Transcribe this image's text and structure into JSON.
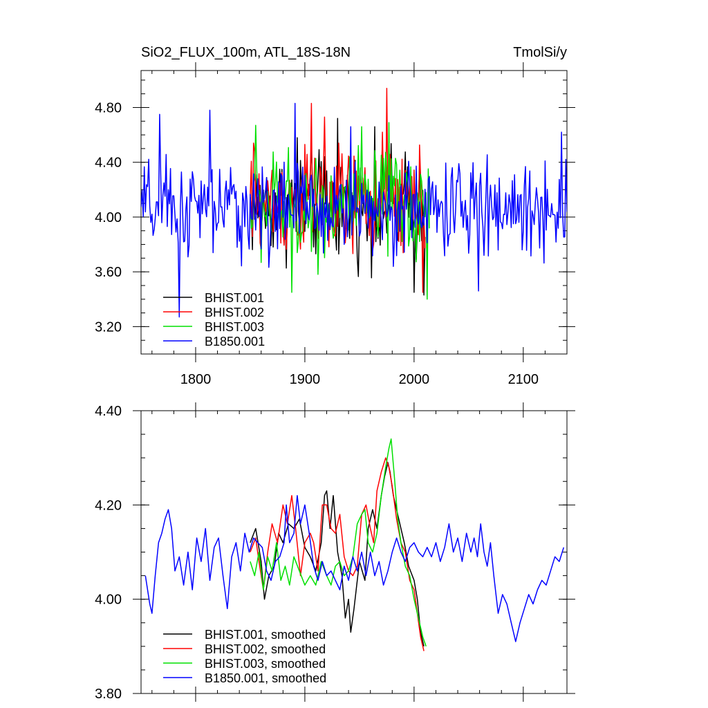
{
  "chart_data": [
    {
      "type": "line",
      "title_left": "SiO2_FLUX_100m, ATL_18S-18N",
      "title_right": "TmolSi/y",
      "xlim": [
        1750,
        2140
      ],
      "ylim": [
        3.0,
        5.07
      ],
      "xticks": [
        1800,
        1900,
        2000,
        2100
      ],
      "yticks": [
        3.2,
        3.6,
        4.0,
        4.4,
        4.8
      ],
      "ytick_labels": [
        "3.20",
        "3.60",
        "4.00",
        "4.40",
        "4.80"
      ],
      "legend_position": "bottom-left",
      "series": [
        {
          "name": "BHIST.001",
          "color": "#000000",
          "x_start": 1850,
          "x_end": 2010,
          "mean": 4.08,
          "sd": 0.25,
          "peaks": [
            [
              1893,
              4.58
            ],
            [
              1918,
              4.44
            ],
            [
              1930,
              4.72
            ],
            [
              1964,
              4.66
            ],
            [
              2000,
              3.45
            ],
            [
              2009,
              3.43
            ]
          ]
        },
        {
          "name": "BHIST.002",
          "color": "#ff0000",
          "x_start": 1850,
          "x_end": 2010,
          "mean": 4.1,
          "sd": 0.26,
          "peaks": [
            [
              1853,
              4.54
            ],
            [
              1906,
              4.83
            ],
            [
              1918,
              4.73
            ],
            [
              1975,
              4.94
            ],
            [
              2008,
              3.45
            ]
          ]
        },
        {
          "name": "BHIST.003",
          "color": "#00e000",
          "x_start": 1850,
          "x_end": 2014,
          "mean": 4.08,
          "sd": 0.25,
          "peaks": [
            [
              1855,
              4.67
            ],
            [
              1888,
              3.45
            ],
            [
              1952,
              4.66
            ],
            [
              1977,
              4.69
            ],
            [
              2012,
              3.4
            ]
          ]
        },
        {
          "name": "B1850.001",
          "color": "#0000ff",
          "x_start": 1750,
          "x_end": 2140,
          "mean": 4.06,
          "sd": 0.22,
          "peaks": [
            [
              1767,
              4.75
            ],
            [
              1785,
              3.27
            ],
            [
              1813,
              4.78
            ],
            [
              1891,
              4.83
            ],
            [
              1942,
              4.66
            ],
            [
              2059,
              3.46
            ],
            [
              2135,
              4.62
            ]
          ]
        }
      ]
    },
    {
      "type": "line",
      "xlim": [
        1750,
        2140
      ],
      "ylim": [
        3.8,
        4.4
      ],
      "yticks": [
        3.8,
        4.0,
        4.2,
        4.4
      ],
      "ytick_labels": [
        "3.80",
        "4.00",
        "4.20",
        "4.40"
      ],
      "legend_position": "bottom-left",
      "series": [
        {
          "name": "BHIST.001, smoothed",
          "color": "#000000",
          "points": [
            [
              1850,
              4.12
            ],
            [
              1855,
              4.15
            ],
            [
              1860,
              4.08
            ],
            [
              1863,
              4.0
            ],
            [
              1867,
              4.05
            ],
            [
              1872,
              4.07
            ],
            [
              1876,
              4.14
            ],
            [
              1880,
              4.12
            ],
            [
              1885,
              4.16
            ],
            [
              1890,
              4.15
            ],
            [
              1895,
              4.17
            ],
            [
              1900,
              4.11
            ],
            [
              1905,
              4.09
            ],
            [
              1910,
              4.06
            ],
            [
              1915,
              4.12
            ],
            [
              1918,
              4.22
            ],
            [
              1920,
              4.23
            ],
            [
              1923,
              4.15
            ],
            [
              1926,
              4.22
            ],
            [
              1930,
              4.1
            ],
            [
              1934,
              4.05
            ],
            [
              1937,
              3.96
            ],
            [
              1940,
              4.0
            ],
            [
              1942,
              3.93
            ],
            [
              1945,
              3.98
            ],
            [
              1950,
              4.08
            ],
            [
              1955,
              4.04
            ],
            [
              1958,
              4.15
            ],
            [
              1962,
              4.19
            ],
            [
              1966,
              4.15
            ],
            [
              1970,
              4.22
            ],
            [
              1973,
              4.26
            ],
            [
              1976,
              4.29
            ],
            [
              1978,
              4.27
            ],
            [
              1981,
              4.22
            ],
            [
              1984,
              4.19
            ],
            [
              1988,
              4.15
            ],
            [
              1991,
              4.12
            ],
            [
              1995,
              4.07
            ],
            [
              2000,
              4.04
            ],
            [
              2003,
              4.0
            ],
            [
              2006,
              3.93
            ],
            [
              2009,
              3.9
            ]
          ]
        },
        {
          "name": "BHIST.002, smoothed",
          "color": "#ff0000",
          "points": [
            [
              1850,
              4.1
            ],
            [
              1855,
              4.13
            ],
            [
              1858,
              4.08
            ],
            [
              1862,
              4.02
            ],
            [
              1866,
              4.1
            ],
            [
              1870,
              4.16
            ],
            [
              1875,
              4.12
            ],
            [
              1880,
              4.2
            ],
            [
              1884,
              4.16
            ],
            [
              1888,
              4.22
            ],
            [
              1892,
              4.14
            ],
            [
              1896,
              4.05
            ],
            [
              1900,
              4.12
            ],
            [
              1905,
              4.14
            ],
            [
              1908,
              4.12
            ],
            [
              1912,
              4.06
            ],
            [
              1916,
              4.2
            ],
            [
              1920,
              4.2
            ],
            [
              1924,
              4.15
            ],
            [
              1928,
              4.14
            ],
            [
              1932,
              4.18
            ],
            [
              1936,
              4.09
            ],
            [
              1940,
              4.06
            ],
            [
              1944,
              4.05
            ],
            [
              1948,
              4.07
            ],
            [
              1952,
              4.18
            ],
            [
              1956,
              4.2
            ],
            [
              1960,
              4.15
            ],
            [
              1963,
              4.12
            ],
            [
              1966,
              4.23
            ],
            [
              1970,
              4.27
            ],
            [
              1974,
              4.3
            ],
            [
              1977,
              4.28
            ],
            [
              1980,
              4.24
            ],
            [
              1984,
              4.17
            ],
            [
              1988,
              4.12
            ],
            [
              1992,
              4.1
            ],
            [
              1996,
              4.04
            ],
            [
              2000,
              4.02
            ],
            [
              2003,
              3.97
            ],
            [
              2006,
              3.92
            ],
            [
              2009,
              3.89
            ]
          ]
        },
        {
          "name": "BHIST.003, smoothed",
          "color": "#00e000",
          "points": [
            [
              1850,
              4.08
            ],
            [
              1854,
              4.05
            ],
            [
              1858,
              4.1
            ],
            [
              1862,
              4.02
            ],
            [
              1866,
              4.09
            ],
            [
              1870,
              4.06
            ],
            [
              1874,
              4.12
            ],
            [
              1878,
              4.04
            ],
            [
              1882,
              4.07
            ],
            [
              1886,
              4.03
            ],
            [
              1890,
              4.09
            ],
            [
              1895,
              4.06
            ],
            [
              1900,
              4.03
            ],
            [
              1905,
              4.05
            ],
            [
              1910,
              4.03
            ],
            [
              1915,
              4.08
            ],
            [
              1920,
              4.05
            ],
            [
              1924,
              4.03
            ],
            [
              1928,
              4.07
            ],
            [
              1932,
              4.08
            ],
            [
              1936,
              4.05
            ],
            [
              1940,
              4.06
            ],
            [
              1944,
              4.09
            ],
            [
              1948,
              4.16
            ],
            [
              1952,
              4.18
            ],
            [
              1955,
              4.19
            ],
            [
              1958,
              4.12
            ],
            [
              1962,
              4.1
            ],
            [
              1966,
              4.14
            ],
            [
              1970,
              4.22
            ],
            [
              1974,
              4.28
            ],
            [
              1977,
              4.32
            ],
            [
              1979,
              4.34
            ],
            [
              1982,
              4.26
            ],
            [
              1985,
              4.17
            ],
            [
              1988,
              4.12
            ],
            [
              1992,
              4.07
            ],
            [
              1996,
              4.05
            ],
            [
              2000,
              4.0
            ],
            [
              2004,
              3.96
            ],
            [
              2008,
              3.92
            ],
            [
              2011,
              3.9
            ]
          ]
        },
        {
          "name": "B1850.001, smoothed",
          "color": "#0000ff",
          "points": [
            [
              1754,
              4.05
            ],
            [
              1758,
              3.99
            ],
            [
              1760,
              3.97
            ],
            [
              1763,
              4.05
            ],
            [
              1766,
              4.12
            ],
            [
              1769,
              4.14
            ],
            [
              1772,
              4.17
            ],
            [
              1775,
              4.19
            ],
            [
              1778,
              4.15
            ],
            [
              1781,
              4.06
            ],
            [
              1785,
              4.09
            ],
            [
              1789,
              4.03
            ],
            [
              1793,
              4.1
            ],
            [
              1797,
              4.02
            ],
            [
              1801,
              4.13
            ],
            [
              1805,
              4.08
            ],
            [
              1809,
              4.15
            ],
            [
              1813,
              4.04
            ],
            [
              1817,
              4.11
            ],
            [
              1821,
              4.13
            ],
            [
              1825,
              4.05
            ],
            [
              1829,
              3.98
            ],
            [
              1833,
              4.09
            ],
            [
              1837,
              4.12
            ],
            [
              1841,
              4.06
            ],
            [
              1845,
              4.14
            ],
            [
              1849,
              4.1
            ],
            [
              1853,
              4.13
            ],
            [
              1857,
              4.12
            ],
            [
              1861,
              4.11
            ],
            [
              1865,
              4.06
            ],
            [
              1869,
              4.04
            ],
            [
              1873,
              4.08
            ],
            [
              1877,
              4.09
            ],
            [
              1881,
              4.12
            ],
            [
              1883,
              4.2
            ],
            [
              1886,
              4.12
            ],
            [
              1890,
              4.14
            ],
            [
              1893,
              4.22
            ],
            [
              1896,
              4.16
            ],
            [
              1900,
              4.2
            ],
            [
              1904,
              4.14
            ],
            [
              1908,
              4.07
            ],
            [
              1912,
              4.04
            ],
            [
              1916,
              4.08
            ],
            [
              1920,
              4.05
            ],
            [
              1924,
              4.06
            ],
            [
              1928,
              4.04
            ],
            [
              1932,
              4.02
            ],
            [
              1936,
              4.07
            ],
            [
              1940,
              4.04
            ],
            [
              1944,
              4.09
            ],
            [
              1948,
              4.06
            ],
            [
              1952,
              4.1
            ],
            [
              1956,
              4.05
            ],
            [
              1960,
              4.1
            ],
            [
              1964,
              4.05
            ],
            [
              1968,
              4.08
            ],
            [
              1972,
              4.03
            ],
            [
              1976,
              4.06
            ],
            [
              1980,
              4.1
            ],
            [
              1984,
              4.13
            ],
            [
              1988,
              4.1
            ],
            [
              1992,
              4.08
            ],
            [
              1996,
              4.11
            ],
            [
              2000,
              4.12
            ],
            [
              2004,
              4.1
            ],
            [
              2008,
              4.09
            ],
            [
              2012,
              4.11
            ],
            [
              2016,
              4.09
            ],
            [
              2020,
              4.12
            ],
            [
              2024,
              4.08
            ],
            [
              2028,
              4.11
            ],
            [
              2032,
              4.16
            ],
            [
              2036,
              4.1
            ],
            [
              2040,
              4.13
            ],
            [
              2044,
              4.08
            ],
            [
              2048,
              4.14
            ],
            [
              2052,
              4.1
            ],
            [
              2055,
              4.13
            ],
            [
              2058,
              4.09
            ],
            [
              2061,
              4.16
            ],
            [
              2064,
              4.1
            ],
            [
              2067,
              4.07
            ],
            [
              2070,
              4.12
            ],
            [
              2073,
              4.05
            ],
            [
              2077,
              3.97
            ],
            [
              2081,
              4.01
            ],
            [
              2085,
              3.99
            ],
            [
              2089,
              3.95
            ],
            [
              2093,
              3.91
            ],
            [
              2097,
              3.95
            ],
            [
              2101,
              3.98
            ],
            [
              2105,
              4.01
            ],
            [
              2109,
              3.99
            ],
            [
              2113,
              4.02
            ],
            [
              2117,
              4.04
            ],
            [
              2121,
              4.03
            ],
            [
              2125,
              4.06
            ],
            [
              2129,
              4.09
            ],
            [
              2133,
              4.08
            ],
            [
              2137,
              4.11
            ]
          ]
        }
      ]
    }
  ]
}
